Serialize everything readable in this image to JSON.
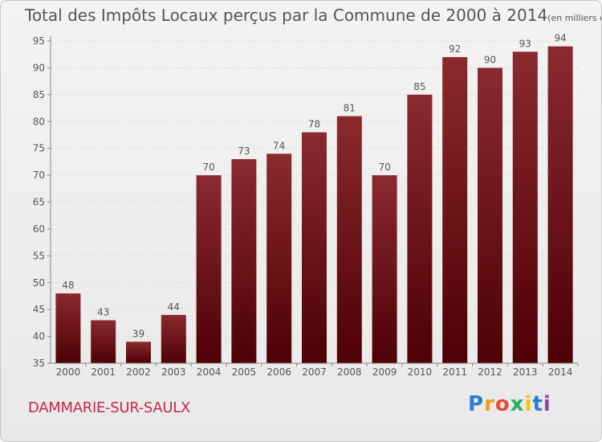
{
  "title": "Total des Impôts Locaux perçus par la Commune de 2000 à 2014",
  "title_unit": "(en milliers d'€)",
  "commune": "DAMMARIE-SUR-SAULX",
  "logo": {
    "letters": [
      "P",
      "r",
      "o",
      "x",
      "i",
      "t",
      "i"
    ],
    "colors": [
      "#2b7cd3",
      "#f39c12",
      "#e74c3c",
      "#27ae60",
      "#f1c40f",
      "#2b7cd3",
      "#8e44ad"
    ]
  },
  "colors": {
    "bar_top": "#8a2a2f",
    "bar_bottom": "#4d0005",
    "text": "#555555",
    "grid": "#e0e0e0",
    "accent": "#c5274f"
  },
  "chart_data": {
    "type": "bar",
    "title": "Total des Impôts Locaux perçus par la Commune de 2000 à 2014",
    "xlabel": "",
    "ylabel": "",
    "ylim": [
      35,
      95
    ],
    "yticks": [
      35,
      40,
      45,
      50,
      55,
      60,
      65,
      70,
      75,
      80,
      85,
      90,
      95
    ],
    "categories": [
      "2000",
      "2001",
      "2002",
      "2003",
      "2004",
      "2005",
      "2006",
      "2007",
      "2008",
      "2009",
      "2010",
      "2011",
      "2012",
      "2013",
      "2014"
    ],
    "values": [
      48,
      43,
      39,
      44,
      70,
      73,
      74,
      78,
      81,
      70,
      85,
      92,
      90,
      93,
      94
    ]
  }
}
